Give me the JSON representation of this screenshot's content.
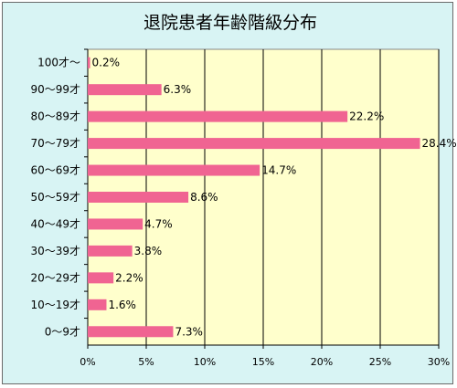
{
  "chart_data": {
    "type": "bar",
    "orientation": "horizontal",
    "title": "退院患者年齢階級分布",
    "categories": [
      "100才～",
      "90～99才",
      "80～89才",
      "70～79才",
      "60～69才",
      "50～59才",
      "40～49才",
      "30～39才",
      "20～29才",
      "10～19才",
      "0～9才"
    ],
    "values": [
      0.2,
      6.3,
      22.2,
      28.4,
      14.7,
      8.6,
      4.7,
      3.8,
      2.2,
      1.6,
      7.3
    ],
    "value_labels": [
      "0.2%",
      "6.3%",
      "22.2%",
      "28.4%",
      "14.7%",
      "8.6%",
      "4.7%",
      "3.8%",
      "2.2%",
      "1.6%",
      "7.3%"
    ],
    "x_ticks": [
      "0%",
      "5%",
      "10%",
      "15%",
      "20%",
      "25%",
      "30%"
    ],
    "xlim": [
      0,
      30
    ],
    "grid": "vertical",
    "legend": "none",
    "colors": {
      "bar": "#f06492",
      "plot_background": "#ffffcc",
      "chart_background": "#d8f4f4",
      "gridline": "#000000"
    }
  }
}
